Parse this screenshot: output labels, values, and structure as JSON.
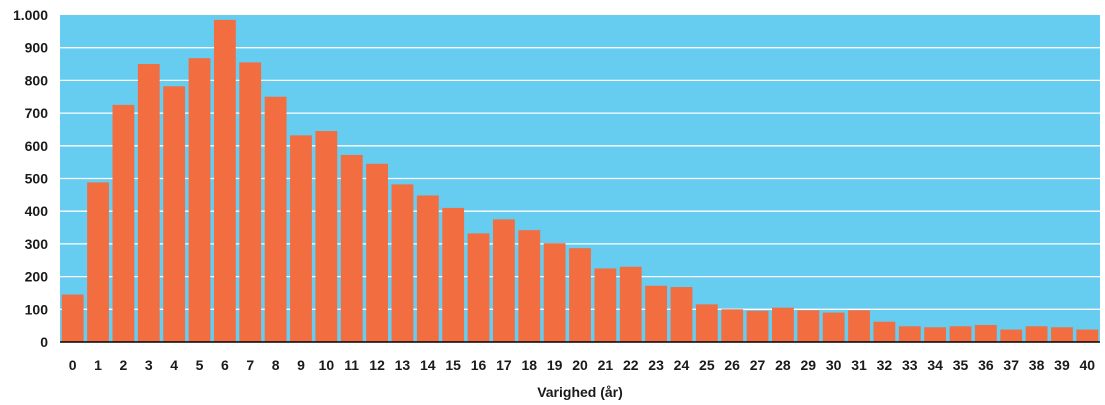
{
  "chart_data": {
    "type": "bar",
    "title": "",
    "xlabel": "Varighed (år)",
    "ylabel": "",
    "categories": [
      "0",
      "1",
      "2",
      "3",
      "4",
      "5",
      "6",
      "7",
      "8",
      "9",
      "10",
      "11",
      "12",
      "13",
      "14",
      "15",
      "16",
      "17",
      "18",
      "19",
      "20",
      "21",
      "22",
      "23",
      "24",
      "25",
      "26",
      "27",
      "28",
      "29",
      "30",
      "31",
      "32",
      "33",
      "34",
      "35",
      "36",
      "37",
      "38",
      "39",
      "40"
    ],
    "values": [
      145,
      488,
      725,
      850,
      782,
      868,
      985,
      855,
      750,
      632,
      645,
      572,
      545,
      482,
      448,
      410,
      332,
      375,
      342,
      302,
      287,
      225,
      230,
      172,
      168,
      115,
      100,
      95,
      105,
      97,
      90,
      97,
      62,
      48,
      45,
      48,
      52,
      38,
      48,
      45,
      38
    ],
    "ylim": [
      0,
      1000
    ],
    "yticks": [
      0,
      100,
      200,
      300,
      400,
      500,
      600,
      700,
      800,
      900,
      1000
    ],
    "ytick_labels": [
      "0",
      "100",
      "200",
      "300",
      "400",
      "500",
      "600",
      "700",
      "800",
      "900",
      "1.000"
    ],
    "grid": true,
    "colors": {
      "plot_background": "#66ccf0",
      "bar": "#f26d40",
      "gridline": "#ffffff",
      "baseline": "#000000"
    }
  }
}
